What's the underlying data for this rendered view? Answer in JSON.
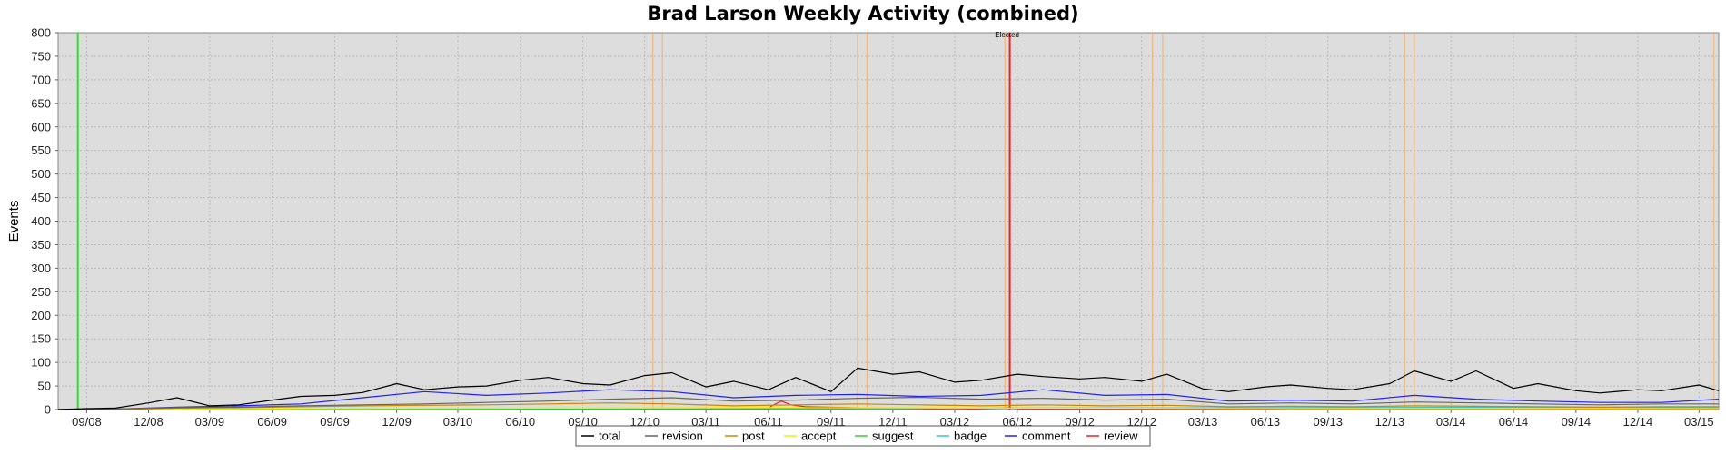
{
  "chart_data": {
    "type": "line",
    "title": "Brad Larson Weekly Activity (combined)",
    "xlabel": "",
    "ylabel": "Events",
    "ylim": [
      0,
      800
    ],
    "yticks": [
      0,
      50,
      100,
      150,
      200,
      250,
      300,
      350,
      400,
      450,
      500,
      550,
      600,
      650,
      700,
      750,
      800
    ],
    "xlim": [
      "2008-07-21",
      "2015-03-30"
    ],
    "x_tick_labels": [
      "09/08",
      "12/08",
      "03/09",
      "06/09",
      "09/09",
      "12/09",
      "03/10",
      "06/10",
      "09/10",
      "12/10",
      "03/11",
      "06/11",
      "09/11",
      "12/11",
      "03/12",
      "06/12",
      "09/12",
      "12/12",
      "03/13",
      "06/13",
      "09/13",
      "12/13",
      "03/14",
      "06/14",
      "09/14",
      "12/14",
      "03/15"
    ],
    "x_tick_dates": [
      "2008-09-01",
      "2008-12-01",
      "2009-03-01",
      "2009-06-01",
      "2009-09-01",
      "2009-12-01",
      "2010-03-01",
      "2010-06-01",
      "2010-09-01",
      "2010-12-01",
      "2011-03-01",
      "2011-06-01",
      "2011-09-01",
      "2011-12-01",
      "2012-03-01",
      "2012-06-01",
      "2012-09-01",
      "2012-12-01",
      "2013-03-01",
      "2013-06-01",
      "2013-09-01",
      "2013-12-01",
      "2014-03-01",
      "2014-06-01",
      "2014-09-01",
      "2014-12-01",
      "2015-03-01"
    ],
    "grid": true,
    "legend_position": "bottom-center",
    "markers": [
      {
        "date": "2008-08-19",
        "color": "#33dd33",
        "label": ""
      },
      {
        "date": "2012-05-21",
        "color": "#ee2222",
        "label": "Elected"
      }
    ],
    "orange_markers": [
      "2010-12-13",
      "2010-12-27",
      "2011-10-10",
      "2011-10-24",
      "2012-05-14",
      "2012-12-17",
      "2013-01-01",
      "2013-12-23",
      "2014-01-06",
      "2015-03-23"
    ],
    "series": [
      {
        "name": "total",
        "color": "#000000",
        "x": [
          "2008-07-21",
          "2008-09-01",
          "2008-10-13",
          "2008-12-01",
          "2009-01-12",
          "2009-03-01",
          "2009-04-13",
          "2009-06-01",
          "2009-07-13",
          "2009-09-01",
          "2009-10-12",
          "2009-12-01",
          "2010-01-11",
          "2010-03-01",
          "2010-04-12",
          "2010-06-01",
          "2010-07-12",
          "2010-09-01",
          "2010-10-11",
          "2010-12-01",
          "2011-01-10",
          "2011-03-01",
          "2011-04-11",
          "2011-06-01",
          "2011-07-11",
          "2011-09-01",
          "2011-10-10",
          "2011-12-01",
          "2012-01-09",
          "2012-03-01",
          "2012-04-09",
          "2012-06-01",
          "2012-07-09",
          "2012-09-01",
          "2012-10-08",
          "2012-12-01",
          "2013-01-07",
          "2013-03-01",
          "2013-04-08",
          "2013-06-01",
          "2013-07-08",
          "2013-09-01",
          "2013-10-07",
          "2013-12-01",
          "2014-01-06",
          "2014-03-01",
          "2014-04-07",
          "2014-06-01",
          "2014-07-07",
          "2014-09-01",
          "2014-10-06",
          "2014-12-01",
          "2015-01-05",
          "2015-03-01",
          "2015-03-30"
        ],
        "y": [
          0,
          2,
          3,
          14,
          25,
          8,
          10,
          20,
          28,
          30,
          36,
          55,
          42,
          48,
          50,
          62,
          68,
          55,
          52,
          72,
          78,
          48,
          60,
          42,
          68,
          38,
          88,
          75,
          80,
          58,
          62,
          75,
          70,
          65,
          68,
          60,
          75,
          44,
          38,
          48,
          52,
          45,
          42,
          55,
          82,
          60,
          82,
          45,
          55,
          40,
          35,
          42,
          40,
          52,
          40
        ]
      },
      {
        "name": "revision",
        "color": "#666666",
        "x": [
          "2008-07-21",
          "2008-10-13",
          "2009-01-12",
          "2009-04-13",
          "2009-07-13",
          "2009-10-12",
          "2010-01-11",
          "2010-04-12",
          "2010-07-12",
          "2010-10-11",
          "2011-01-10",
          "2011-04-11",
          "2011-07-11",
          "2011-10-10",
          "2012-01-09",
          "2012-04-09",
          "2012-07-09",
          "2012-10-08",
          "2013-01-07",
          "2013-04-08",
          "2013-07-08",
          "2013-10-07",
          "2014-01-06",
          "2014-04-07",
          "2014-07-07",
          "2014-10-06",
          "2015-01-05",
          "2015-03-30"
        ],
        "y": [
          0,
          1,
          4,
          5,
          8,
          10,
          12,
          15,
          18,
          22,
          25,
          18,
          20,
          24,
          26,
          22,
          24,
          20,
          22,
          12,
          14,
          12,
          16,
          14,
          12,
          10,
          12,
          12
        ]
      },
      {
        "name": "post",
        "color": "#cc8800",
        "x": [
          "2008-07-21",
          "2008-10-13",
          "2009-01-12",
          "2009-04-13",
          "2009-07-13",
          "2009-10-12",
          "2010-01-11",
          "2010-04-12",
          "2010-07-12",
          "2010-10-11",
          "2011-01-10",
          "2011-04-11",
          "2011-07-11",
          "2011-10-10",
          "2012-01-09",
          "2012-04-09",
          "2012-07-09",
          "2012-10-08",
          "2013-01-07",
          "2013-04-08",
          "2013-07-08",
          "2013-10-07",
          "2014-01-06",
          "2014-04-07",
          "2014-07-07",
          "2014-10-06",
          "2015-01-05",
          "2015-03-30"
        ],
        "y": [
          0,
          0,
          3,
          4,
          6,
          8,
          9,
          10,
          12,
          14,
          12,
          8,
          10,
          12,
          10,
          8,
          10,
          8,
          9,
          6,
          7,
          6,
          8,
          7,
          6,
          5,
          6,
          6
        ]
      },
      {
        "name": "accept",
        "color": "#eeee00",
        "x": [
          "2008-07-21",
          "2009-07-13",
          "2010-07-12",
          "2011-07-11",
          "2012-07-09",
          "2013-07-08",
          "2014-07-07",
          "2015-03-30"
        ],
        "y": [
          0,
          2,
          3,
          4,
          3,
          2,
          2,
          2
        ]
      },
      {
        "name": "suggest",
        "color": "#33cc33",
        "x": [
          "2008-07-21",
          "2009-07-13",
          "2010-07-12",
          "2011-07-11",
          "2012-07-09",
          "2013-07-08",
          "2014-07-07",
          "2015-03-30"
        ],
        "y": [
          0,
          1,
          1,
          2,
          3,
          2,
          2,
          2
        ]
      },
      {
        "name": "badge",
        "color": "#33cccc",
        "x": [
          "2008-07-21",
          "2009-07-13",
          "2010-07-12",
          "2011-07-11",
          "2012-07-09",
          "2013-07-08",
          "2014-07-07",
          "2015-03-30"
        ],
        "y": [
          0,
          1,
          2,
          2,
          3,
          4,
          5,
          4
        ]
      },
      {
        "name": "comment",
        "color": "#2222ee",
        "x": [
          "2008-07-21",
          "2008-10-13",
          "2009-01-12",
          "2009-04-13",
          "2009-07-13",
          "2009-10-12",
          "2010-01-11",
          "2010-04-12",
          "2010-07-12",
          "2010-10-11",
          "2011-01-10",
          "2011-04-11",
          "2011-07-11",
          "2011-10-10",
          "2012-01-09",
          "2012-04-09",
          "2012-07-09",
          "2012-10-08",
          "2013-01-07",
          "2013-04-08",
          "2013-07-08",
          "2013-10-07",
          "2014-01-06",
          "2014-04-07",
          "2014-07-07",
          "2014-10-06",
          "2015-01-05",
          "2015-03-30"
        ],
        "y": [
          0,
          1,
          5,
          8,
          12,
          25,
          38,
          30,
          35,
          42,
          38,
          25,
          30,
          32,
          28,
          30,
          42,
          30,
          32,
          18,
          20,
          18,
          30,
          22,
          18,
          15,
          15,
          22
        ]
      },
      {
        "name": "review",
        "color": "#ee2222",
        "x": [
          "2008-07-21",
          "2011-05-30",
          "2011-06-06",
          "2011-06-20",
          "2011-07-04",
          "2011-07-25",
          "2012-03-05",
          "2012-05-21",
          "2012-06-04",
          "2013-01-07",
          "2015-03-30"
        ],
        "y": [
          0,
          0,
          8,
          18,
          10,
          6,
          0,
          4,
          2,
          1,
          0
        ]
      }
    ]
  }
}
